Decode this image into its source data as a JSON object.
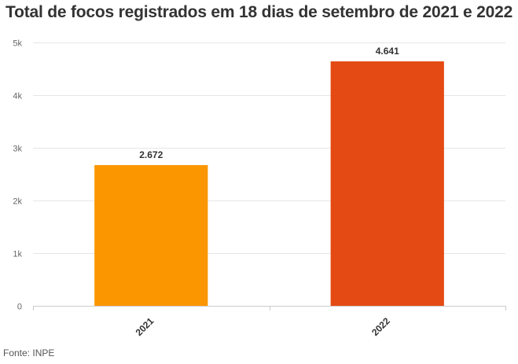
{
  "source": "Fonte: INPE",
  "chart_data": {
    "type": "bar",
    "title": "Total de focos registrados em 18 dias de setembro de 2021 e 2022",
    "categories": [
      "2021",
      "2022"
    ],
    "values": [
      2672,
      4641
    ],
    "data_labels": [
      "2.672",
      "4.641"
    ],
    "bar_colors": [
      "#fb9600",
      "#e44a13"
    ],
    "ylim": [
      0,
      5000
    ],
    "yticks": [
      0,
      1000,
      2000,
      3000,
      4000,
      5000
    ],
    "ytick_labels": [
      "0",
      "1k",
      "2k",
      "3k",
      "4k",
      "5k"
    ],
    "grid": true,
    "legend": "none"
  }
}
